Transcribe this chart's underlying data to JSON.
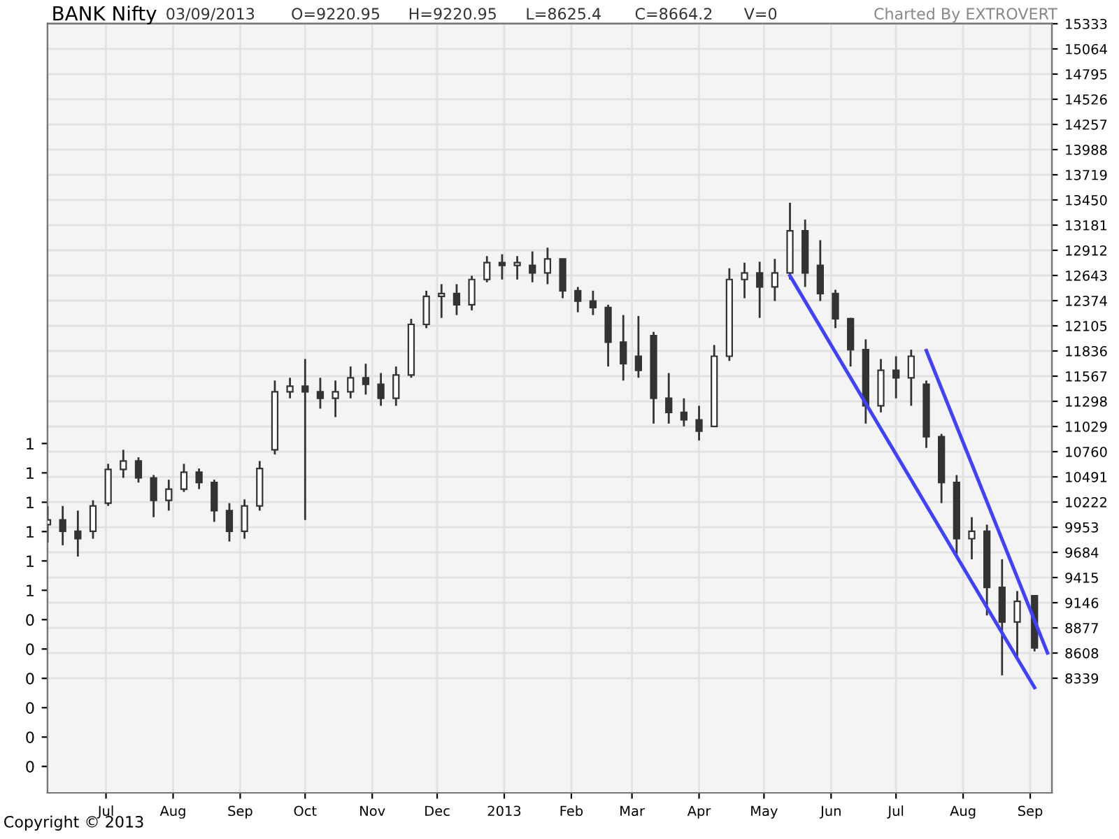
{
  "chart_data": {
    "type": "candlestick",
    "title": "BANK Nifty",
    "annotations": [
      "03/09/2013",
      "O=9220.95",
      "H=9220.95",
      "L=8625.4",
      "C=8664.2",
      "V=0",
      "Charted By EXTROVERT",
      "Copyright © 2013"
    ],
    "color": "#333333",
    "x": [
      "2012-06-04",
      "2012-06-11",
      "2012-06-18",
      "2012-06-25",
      "2012-07-02",
      "2012-07-09",
      "2012-07-16",
      "2012-07-23",
      "2012-07-30",
      "2012-08-06",
      "2012-08-13",
      "2012-08-20",
      "2012-08-27",
      "2012-09-03",
      "2012-09-10",
      "2012-09-17",
      "2012-09-24",
      "2012-10-01",
      "2012-10-08",
      "2012-10-15",
      "2012-10-22",
      "2012-10-29",
      "2012-11-05",
      "2012-11-12",
      "2012-11-19",
      "2012-11-26",
      "2012-12-03",
      "2012-12-10",
      "2012-12-17",
      "2012-12-24",
      "2012-12-31",
      "2013-01-07",
      "2013-01-14",
      "2013-01-21",
      "2013-01-28",
      "2013-02-04",
      "2013-02-11",
      "2013-02-18",
      "2013-02-25",
      "2013-03-04",
      "2013-03-11",
      "2013-03-18",
      "2013-03-25",
      "2013-04-01",
      "2013-04-08",
      "2013-04-15",
      "2013-04-22",
      "2013-04-29",
      "2013-05-06",
      "2013-05-13",
      "2013-05-20",
      "2013-05-27",
      "2013-06-03",
      "2013-06-10",
      "2013-06-17",
      "2013-06-24",
      "2013-07-01",
      "2013-07-08",
      "2013-07-15",
      "2013-07-22",
      "2013-07-29",
      "2013-08-05",
      "2013-08-12",
      "2013-08-19",
      "2013-08-26",
      "2013-09-03"
    ],
    "ohlc": [
      [
        9980,
        10180,
        9790,
        10030
      ],
      [
        10030,
        10180,
        9760,
        9910
      ],
      [
        9910,
        10130,
        9640,
        9830
      ],
      [
        9910,
        10240,
        9830,
        10180
      ],
      [
        10210,
        10630,
        10180,
        10570
      ],
      [
        10570,
        10780,
        10480,
        10660
      ],
      [
        10660,
        10700,
        10430,
        10480
      ],
      [
        10480,
        10510,
        10060,
        10240
      ],
      [
        10240,
        10460,
        10130,
        10360
      ],
      [
        10360,
        10630,
        10330,
        10540
      ],
      [
        10540,
        10580,
        10360,
        10430
      ],
      [
        10430,
        10460,
        10010,
        10130
      ],
      [
        10130,
        10210,
        9800,
        9910
      ],
      [
        9910,
        10250,
        9830,
        10180
      ],
      [
        10180,
        10660,
        10130,
        10580
      ],
      [
        10780,
        11520,
        10730,
        11400
      ],
      [
        11400,
        11550,
        11330,
        11460
      ],
      [
        11460,
        11750,
        10030,
        11400
      ],
      [
        11400,
        11550,
        11220,
        11330
      ],
      [
        11330,
        11520,
        11130,
        11400
      ],
      [
        11400,
        11670,
        11330,
        11550
      ],
      [
        11550,
        11700,
        11370,
        11480
      ],
      [
        11480,
        11600,
        11250,
        11330
      ],
      [
        11330,
        11670,
        11250,
        11580
      ],
      [
        11580,
        12180,
        11550,
        12120
      ],
      [
        12120,
        12480,
        12080,
        12420
      ],
      [
        12420,
        12550,
        12190,
        12450
      ],
      [
        12450,
        12550,
        12220,
        12330
      ],
      [
        12330,
        12640,
        12270,
        12600
      ],
      [
        12600,
        12850,
        12570,
        12780
      ],
      [
        12780,
        12870,
        12600,
        12750
      ],
      [
        12750,
        12850,
        12600,
        12780
      ],
      [
        12750,
        12900,
        12570,
        12670
      ],
      [
        12670,
        12940,
        12550,
        12820
      ],
      [
        12820,
        12820,
        12400,
        12480
      ],
      [
        12480,
        12520,
        12250,
        12370
      ],
      [
        12370,
        12480,
        12220,
        12300
      ],
      [
        12300,
        12330,
        11670,
        11930
      ],
      [
        11930,
        12220,
        11520,
        11700
      ],
      [
        11780,
        12210,
        11550,
        11630
      ],
      [
        12000,
        12040,
        11060,
        11330
      ],
      [
        11330,
        11600,
        11060,
        11180
      ],
      [
        11180,
        11330,
        11030,
        11100
      ],
      [
        11100,
        11250,
        10880,
        10980
      ],
      [
        11030,
        11900,
        11030,
        11780
      ],
      [
        11780,
        12720,
        11730,
        12600
      ],
      [
        12600,
        12780,
        12400,
        12670
      ],
      [
        12670,
        12790,
        12190,
        12520
      ],
      [
        12520,
        12820,
        12370,
        12670
      ],
      [
        12670,
        13420,
        12600,
        13120
      ],
      [
        13120,
        13240,
        12520,
        12670
      ],
      [
        12750,
        13020,
        12370,
        12450
      ],
      [
        12450,
        12490,
        12080,
        12180
      ],
      [
        12180,
        12190,
        11670,
        11850
      ],
      [
        11850,
        11960,
        11060,
        11250
      ],
      [
        11250,
        11750,
        11180,
        11630
      ],
      [
        11630,
        11780,
        11330,
        11550
      ],
      [
        11550,
        11850,
        11250,
        11780
      ],
      [
        11480,
        11520,
        10800,
        10920
      ],
      [
        10920,
        10950,
        10210,
        10430
      ],
      [
        10430,
        10510,
        9650,
        9830
      ],
      [
        9830,
        10060,
        9610,
        9910
      ],
      [
        9910,
        9980,
        9010,
        9310
      ],
      [
        9310,
        9610,
        8370,
        8940
      ],
      [
        8940,
        9270,
        8560,
        9160
      ],
      [
        9220.95,
        9220.95,
        8625.4,
        8664.2
      ]
    ],
    "series": [
      {
        "type": "line",
        "color": "#4040ff",
        "x": [
          "2013-05-13",
          "2013-09-03"
        ],
        "values": [
          12640,
          8240
        ]
      },
      {
        "type": "line",
        "color": "#4040ff",
        "x": [
          "2013-07-15",
          "2013-09-09"
        ],
        "values": [
          11840,
          8610
        ]
      }
    ],
    "xlim": [
      "2012-06-04",
      "2013-09-11"
    ],
    "xticks": [
      {
        "value": "2012-07-01",
        "label": "Jul"
      },
      {
        "value": "2012-08-01",
        "label": "Aug"
      },
      {
        "value": "2012-09-01",
        "label": "Sep"
      },
      {
        "value": "2012-10-01",
        "label": "Oct"
      },
      {
        "value": "2012-11-01",
        "label": "Nov"
      },
      {
        "value": "2012-12-01",
        "label": "Dec"
      },
      {
        "value": "2013-01-01",
        "label": "2013"
      },
      {
        "value": "2013-02-01",
        "label": "Feb"
      },
      {
        "value": "2013-03-01",
        "label": "Mar"
      },
      {
        "value": "2013-04-01",
        "label": "Apr"
      },
      {
        "value": "2013-05-01",
        "label": "May"
      },
      {
        "value": "2013-06-01",
        "label": "Jun"
      },
      {
        "value": "2013-07-01",
        "label": "Jul"
      },
      {
        "value": "2013-08-01",
        "label": "Aug"
      },
      {
        "value": "2013-09-01",
        "label": "Sep"
      }
    ],
    "ylim": [
      7114,
      15333
    ],
    "yticks": [
      8339,
      8608,
      8877,
      9146,
      9415,
      9684,
      9953,
      10222,
      10491,
      10760,
      11029,
      11298,
      11567,
      11836,
      12105,
      12374,
      12643,
      12912,
      13181,
      13450,
      13719,
      13988,
      14257,
      14526,
      14795,
      15064,
      15333
    ],
    "y2lim": [
      -0.09,
      2.53
    ],
    "y2ticks": [
      {
        "value": 0,
        "label": "0"
      },
      {
        "value": 0.1,
        "label": "0"
      },
      {
        "value": 0.2,
        "label": "0"
      },
      {
        "value": 0.3,
        "label": "0"
      },
      {
        "value": 0.4,
        "label": "0"
      },
      {
        "value": 0.5,
        "label": "0"
      },
      {
        "value": 0.6,
        "label": "1"
      },
      {
        "value": 0.7,
        "label": "1"
      },
      {
        "value": 0.8,
        "label": "1"
      },
      {
        "value": 0.9,
        "label": "1"
      },
      {
        "value": 1.0,
        "label": "1"
      },
      {
        "value": 1.1,
        "label": "1"
      }
    ],
    "grid": true
  }
}
